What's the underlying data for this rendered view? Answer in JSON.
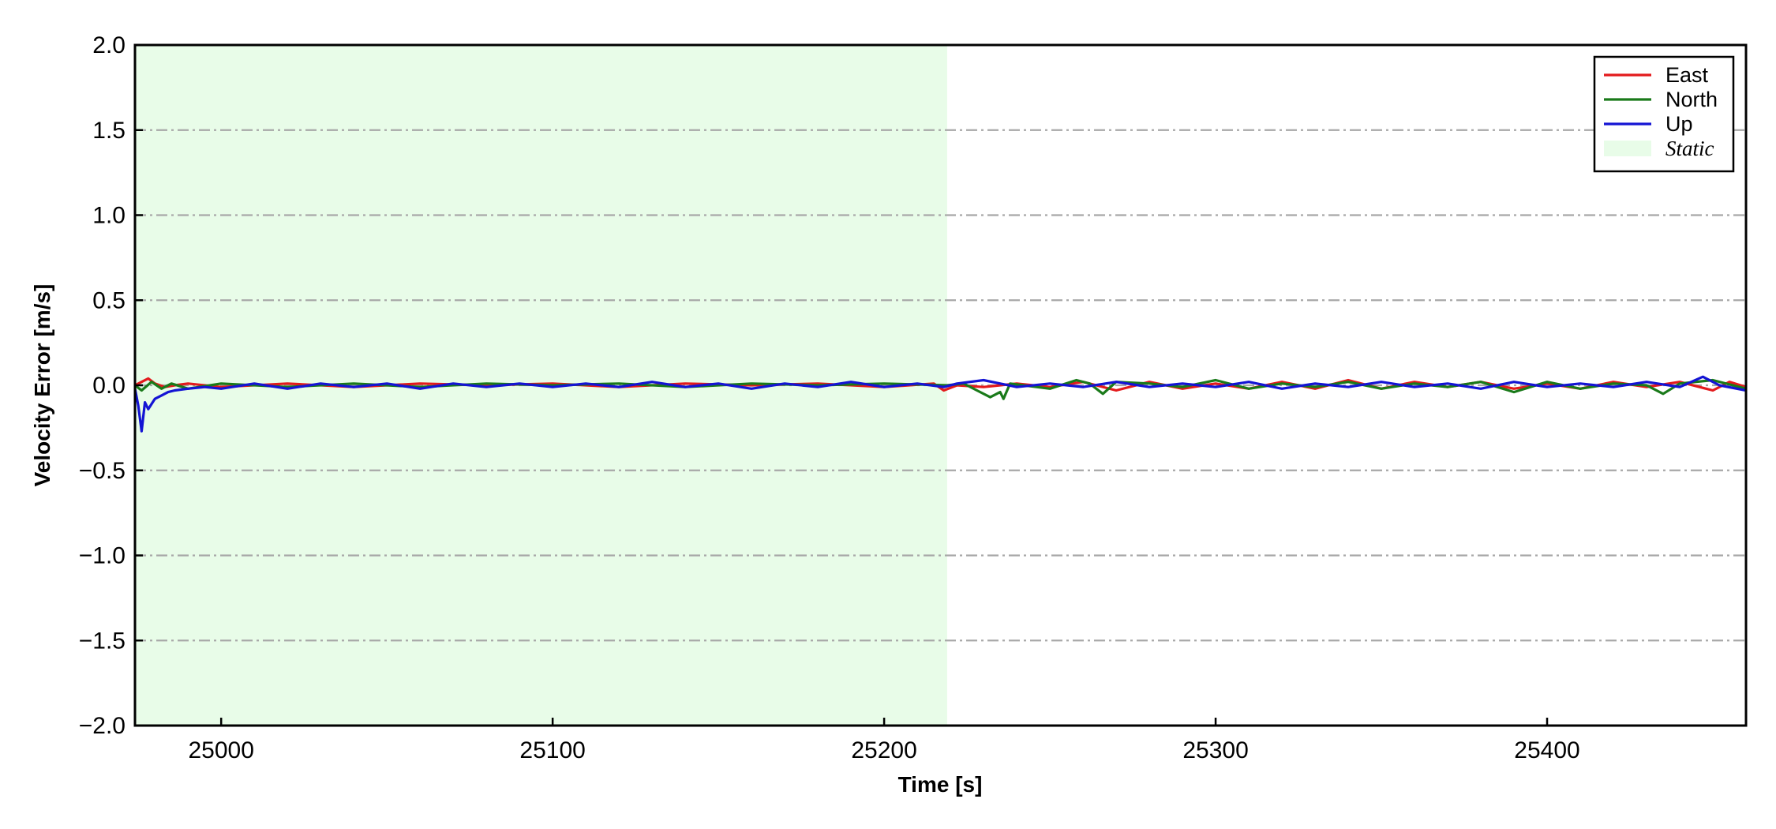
{
  "chart_data": {
    "type": "line",
    "title": "",
    "xlabel": "Time [s]",
    "ylabel": "Velocity Error [m/s]",
    "xlim": [
      24974,
      25460
    ],
    "ylim": [
      -2.0,
      2.0
    ],
    "xticks": [
      25000,
      25100,
      25200,
      25300,
      25400
    ],
    "yticks": [
      -2.0,
      -1.5,
      -1.0,
      -0.5,
      0.0,
      0.5,
      1.0,
      1.5,
      2.0
    ],
    "ytick_labels": [
      "−2.0",
      "−1.5",
      "−1.0",
      "−0.5",
      "0.0",
      "0.5",
      "1.0",
      "1.5",
      "2.0"
    ],
    "grid": "horizontal dash-dot",
    "legend_position": "top-right",
    "shaded_regions": [
      {
        "name": "Static",
        "x_start": 24974,
        "x_end": 25219,
        "color": "#e8fce8"
      }
    ],
    "series": [
      {
        "name": "East",
        "color": "#e31a1c",
        "points": [
          [
            24974,
            0.0
          ],
          [
            24976,
            0.02
          ],
          [
            24978,
            0.04
          ],
          [
            24980,
            0.01
          ],
          [
            24983,
            -0.01
          ],
          [
            24986,
            0.0
          ],
          [
            24990,
            0.01
          ],
          [
            25000,
            -0.01
          ],
          [
            25020,
            0.01
          ],
          [
            25040,
            -0.01
          ],
          [
            25060,
            0.01
          ],
          [
            25080,
            0.0
          ],
          [
            25100,
            0.01
          ],
          [
            25120,
            -0.01
          ],
          [
            25140,
            0.01
          ],
          [
            25160,
            0.0
          ],
          [
            25180,
            0.01
          ],
          [
            25200,
            -0.01
          ],
          [
            25215,
            0.01
          ],
          [
            25218,
            -0.03
          ],
          [
            25222,
            0.0
          ],
          [
            25230,
            -0.01
          ],
          [
            25240,
            0.01
          ],
          [
            25250,
            -0.01
          ],
          [
            25260,
            0.02
          ],
          [
            25270,
            -0.03
          ],
          [
            25280,
            0.02
          ],
          [
            25290,
            -0.02
          ],
          [
            25300,
            0.01
          ],
          [
            25310,
            -0.02
          ],
          [
            25320,
            0.02
          ],
          [
            25330,
            -0.02
          ],
          [
            25340,
            0.03
          ],
          [
            25350,
            -0.02
          ],
          [
            25360,
            0.02
          ],
          [
            25370,
            -0.01
          ],
          [
            25380,
            0.02
          ],
          [
            25390,
            -0.02
          ],
          [
            25400,
            0.01
          ],
          [
            25410,
            -0.02
          ],
          [
            25420,
            0.02
          ],
          [
            25430,
            -0.01
          ],
          [
            25440,
            0.02
          ],
          [
            25450,
            -0.03
          ],
          [
            25455,
            0.02
          ],
          [
            25460,
            -0.01
          ]
        ]
      },
      {
        "name": "North",
        "color": "#1a7a1a",
        "points": [
          [
            24974,
            0.0
          ],
          [
            24976,
            -0.03
          ],
          [
            24979,
            0.02
          ],
          [
            24982,
            -0.02
          ],
          [
            24985,
            0.01
          ],
          [
            24990,
            -0.02
          ],
          [
            25000,
            0.01
          ],
          [
            25020,
            -0.01
          ],
          [
            25040,
            0.01
          ],
          [
            25060,
            -0.01
          ],
          [
            25080,
            0.01
          ],
          [
            25100,
            0.0
          ],
          [
            25120,
            0.01
          ],
          [
            25140,
            -0.01
          ],
          [
            25160,
            0.01
          ],
          [
            25180,
            0.0
          ],
          [
            25200,
            0.01
          ],
          [
            25219,
            0.0
          ],
          [
            25224,
            0.01
          ],
          [
            25228,
            -0.03
          ],
          [
            25232,
            -0.07
          ],
          [
            25235,
            -0.04
          ],
          [
            25236,
            -0.08
          ],
          [
            25238,
            0.01
          ],
          [
            25242,
            0.0
          ],
          [
            25250,
            -0.02
          ],
          [
            25258,
            0.03
          ],
          [
            25262,
            0.01
          ],
          [
            25266,
            -0.05
          ],
          [
            25270,
            0.02
          ],
          [
            25280,
            0.01
          ],
          [
            25290,
            -0.01
          ],
          [
            25300,
            0.03
          ],
          [
            25310,
            -0.02
          ],
          [
            25320,
            0.01
          ],
          [
            25330,
            -0.01
          ],
          [
            25340,
            0.02
          ],
          [
            25350,
            -0.02
          ],
          [
            25360,
            0.01
          ],
          [
            25370,
            -0.01
          ],
          [
            25380,
            0.02
          ],
          [
            25390,
            -0.04
          ],
          [
            25400,
            0.02
          ],
          [
            25410,
            -0.02
          ],
          [
            25420,
            0.01
          ],
          [
            25430,
            0.0
          ],
          [
            25435,
            -0.05
          ],
          [
            25440,
            0.01
          ],
          [
            25450,
            0.03
          ],
          [
            25460,
            -0.02
          ]
        ]
      },
      {
        "name": "Up",
        "color": "#1414d4",
        "points": [
          [
            24974,
            -0.02
          ],
          [
            24975,
            -0.12
          ],
          [
            24976,
            -0.27
          ],
          [
            24977,
            -0.1
          ],
          [
            24978,
            -0.14
          ],
          [
            24980,
            -0.08
          ],
          [
            24982,
            -0.06
          ],
          [
            24984,
            -0.04
          ],
          [
            24986,
            -0.03
          ],
          [
            24990,
            -0.02
          ],
          [
            24995,
            -0.01
          ],
          [
            25000,
            -0.02
          ],
          [
            25010,
            0.01
          ],
          [
            25020,
            -0.02
          ],
          [
            25030,
            0.01
          ],
          [
            25040,
            -0.01
          ],
          [
            25050,
            0.01
          ],
          [
            25060,
            -0.02
          ],
          [
            25070,
            0.01
          ],
          [
            25080,
            -0.01
          ],
          [
            25090,
            0.01
          ],
          [
            25100,
            -0.01
          ],
          [
            25110,
            0.01
          ],
          [
            25120,
            -0.01
          ],
          [
            25130,
            0.02
          ],
          [
            25140,
            -0.01
          ],
          [
            25150,
            0.01
          ],
          [
            25160,
            -0.02
          ],
          [
            25170,
            0.01
          ],
          [
            25180,
            -0.01
          ],
          [
            25190,
            0.02
          ],
          [
            25200,
            -0.01
          ],
          [
            25210,
            0.01
          ],
          [
            25218,
            -0.01
          ],
          [
            25222,
            0.01
          ],
          [
            25230,
            0.03
          ],
          [
            25235,
            0.01
          ],
          [
            25240,
            -0.01
          ],
          [
            25250,
            0.01
          ],
          [
            25260,
            -0.01
          ],
          [
            25270,
            0.02
          ],
          [
            25280,
            -0.01
          ],
          [
            25290,
            0.01
          ],
          [
            25300,
            -0.01
          ],
          [
            25310,
            0.02
          ],
          [
            25320,
            -0.02
          ],
          [
            25330,
            0.01
          ],
          [
            25340,
            -0.01
          ],
          [
            25350,
            0.02
          ],
          [
            25360,
            -0.01
          ],
          [
            25370,
            0.01
          ],
          [
            25380,
            -0.02
          ],
          [
            25390,
            0.02
          ],
          [
            25400,
            -0.01
          ],
          [
            25410,
            0.01
          ],
          [
            25420,
            -0.01
          ],
          [
            25430,
            0.02
          ],
          [
            25440,
            -0.01
          ],
          [
            25447,
            0.05
          ],
          [
            25452,
            0.0
          ],
          [
            25460,
            -0.03
          ]
        ]
      }
    ]
  }
}
